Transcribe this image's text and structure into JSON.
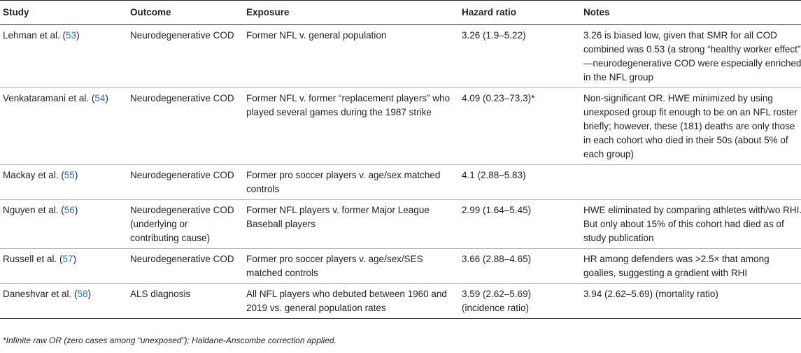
{
  "headers": {
    "study": "Study",
    "outcome": "Outcome",
    "exposure": "Exposure",
    "hazard": "Hazard ratio",
    "notes": "Notes"
  },
  "rows": [
    {
      "study": "Lehman et al. (",
      "ref": "53",
      "close": ")",
      "outcome": "Neurodegenerative COD",
      "exposure": "Former NFL v. general population",
      "hazard": "3.26 (1.9–5.22)",
      "notes": "3.26 is biased low, given that SMR for all COD combined was 0.53 (a strong “healthy worker effect”)—neurodegenerative COD were especially enriched in the NFL group"
    },
    {
      "study": "Venkataramani et al. (",
      "ref": "54",
      "close": ")",
      "outcome": "Neurodegenerative COD",
      "exposure": "Former NFL v. former “replacement players” who played several games during the 1987 strike",
      "hazard": "4.09 (0.23–73.3)*",
      "notes": "Non-significant OR. HWE minimized by using unexposed group fit enough to be on an NFL roster briefly; however, these (181) deaths are only those in each cohort who died in their 50s (about 5% of each group)"
    },
    {
      "study": "Mackay et al. (",
      "ref": "55",
      "close": ")",
      "outcome": "Neurodegenerative COD",
      "exposure": "Former pro soccer players v. age/sex matched controls",
      "hazard": "4.1 (2.88–5.83)",
      "notes": ""
    },
    {
      "study": "Nguyen et al. (",
      "ref": "56",
      "close": ")",
      "outcome": "Neurodegenerative COD (underlying or contributing cause)",
      "exposure": "Former NFL players v. former Major League Baseball players",
      "hazard": "2.99 (1.64–5.45)",
      "notes": "HWE eliminated by comparing athletes with/wo RHI. But only about 15% of this cohort had died as of study publication"
    },
    {
      "study": "Russell et al. (",
      "ref": "57",
      "close": ")",
      "outcome": "Neurodegenerative COD",
      "exposure": "Former pro soccer players v. age/sex/SES matched controls",
      "hazard": "3.66 (2.88–4.65)",
      "notes": "HR among defenders was >2.5× that among goalies, suggesting a gradient with RHI"
    },
    {
      "study": "Daneshvar et al. (",
      "ref": "58",
      "close": ")",
      "outcome": "ALS diagnosis",
      "exposure": "All NFL players who debuted between 1960 and 2019 vs. general population rates",
      "hazard": "3.59 (2.62–5.69) (incidence ratio)",
      "notes": "3.94 (2.62–5.69) (mortality ratio)"
    }
  ],
  "footnote": "*Infinite raw OR (zero cases among “unexposed”); Haldane-Anscombe correction applied."
}
